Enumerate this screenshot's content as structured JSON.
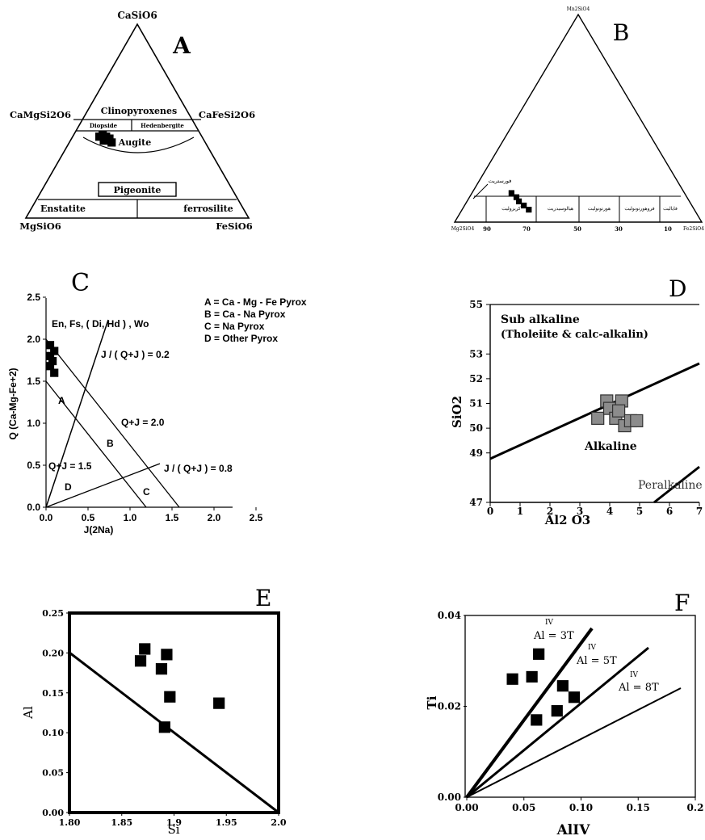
{
  "panels": {
    "A": {
      "letter": "A",
      "vertices": {
        "top": "CaSiO6",
        "left": "MgSiO6",
        "right": "FeSiO6"
      },
      "edge_labels": {
        "left": "CaMgSi2O6",
        "right": "CaFeSi2O6"
      },
      "fields": {
        "clinopyroxenes": "Clinopyroxenes",
        "diopside": "Diopside",
        "hedenbergite": "Hedenbergite",
        "augite": "Augite",
        "pigeonite": "Pigeonite",
        "enstatite": "Enstatite",
        "ferrosilite": "ferrosilite"
      }
    },
    "B": {
      "letter": "B",
      "vertices": {
        "top": "Mn2SiO4",
        "left": "Mg2SiO4",
        "right": "Fe2SiO4"
      },
      "ticks": [
        "90",
        "70",
        "50",
        "30",
        "10"
      ],
      "fields": [
        "فورستریت",
        "کریزولیت",
        "هیالوسیدریت",
        "هورتونولیت",
        "فروهورتونولیت",
        "فایالیت"
      ]
    },
    "C": {
      "letter": "C",
      "legend": [
        "A = Ca - Mg - Fe Pyrox",
        "B = Ca - Na Pyrox",
        "C = Na Pyrox",
        "D = Other Pyrox"
      ],
      "labels": {
        "top": "En, Fs, ( Di, Hd ) , Wo",
        "j02": "J / ( Q+J ) = 0.2",
        "j08": "J / ( Q+J ) = 0.8",
        "qj20": "Q+J = 2.0",
        "qj15": "Q+J = 1.5",
        "fa": "A",
        "fb": "B",
        "fc": "C",
        "fd": "D"
      }
    },
    "D": {
      "letter": "D",
      "labels": {
        "sub1": "Sub alkaline",
        "sub2": "(Tholeiite & calc-alkalin)",
        "alk": "Alkaline",
        "peral": "Peralkaline"
      }
    }
  },
  "chart_data": [
    {
      "panel": "A",
      "type": "ternary",
      "components": [
        "CaSiO6",
        "MgSiO6",
        "FeSiO6"
      ],
      "points": [
        {
          "Ca": 42,
          "Mg": 46,
          "Fe": 12
        },
        {
          "Ca": 43,
          "Mg": 44,
          "Fe": 13
        },
        {
          "Ca": 42,
          "Mg": 43,
          "Fe": 15
        },
        {
          "Ca": 41,
          "Mg": 44,
          "Fe": 15
        },
        {
          "Ca": 40,
          "Mg": 45,
          "Fe": 15
        },
        {
          "Ca": 41,
          "Mg": 42,
          "Fe": 17
        },
        {
          "Ca": 40,
          "Mg": 43,
          "Fe": 17
        },
        {
          "Ca": 39,
          "Mg": 42,
          "Fe": 19
        }
      ]
    },
    {
      "panel": "B",
      "type": "ternary",
      "components": [
        "Mn2SiO4",
        "Mg2SiO4",
        "Fe2SiO4"
      ],
      "points": [
        {
          "Mn": 14,
          "Mg": 70,
          "Fe": 16
        },
        {
          "Mn": 12,
          "Mg": 69,
          "Fe": 19
        },
        {
          "Mn": 10,
          "Mg": 69,
          "Fe": 21
        },
        {
          "Mn": 8,
          "Mg": 68,
          "Fe": 24
        },
        {
          "Mn": 6,
          "Mg": 67,
          "Fe": 27
        }
      ]
    },
    {
      "panel": "C",
      "type": "scatter",
      "xlabel": "J(2Na)",
      "ylabel": "Q (Ca-Mg-Fe+2)",
      "xlim": [
        0,
        2.5
      ],
      "ylim": [
        0,
        2.5
      ],
      "xticks": [
        "0.0",
        "0.5",
        "1.0",
        "1.5",
        "2.0",
        "2.5"
      ],
      "yticks": [
        "0.0",
        "0.5",
        "1.0",
        "1.5",
        "2.0",
        "2.5"
      ],
      "points": [
        {
          "x": 0.0,
          "y": 1.93
        },
        {
          "x": 0.05,
          "y": 1.86
        },
        {
          "x": 0.0,
          "y": 1.8
        },
        {
          "x": 0.03,
          "y": 1.74
        },
        {
          "x": 0.0,
          "y": 1.68
        },
        {
          "x": 0.05,
          "y": 1.6
        }
      ]
    },
    {
      "panel": "D",
      "type": "scatter",
      "xlabel": "Al2 O3",
      "ylabel": "SiO2",
      "xlim": [
        0,
        7
      ],
      "ylim": [
        47,
        55
      ],
      "xticks": [
        "0",
        "1",
        "2",
        "3",
        "4",
        "5",
        "6",
        "7"
      ],
      "yticks": [
        "47",
        "49",
        "50",
        "51",
        "52",
        "53",
        "55"
      ],
      "points": [
        {
          "x": 3.6,
          "y": 50.4
        },
        {
          "x": 3.9,
          "y": 51.1
        },
        {
          "x": 4.0,
          "y": 50.8
        },
        {
          "x": 4.2,
          "y": 50.4
        },
        {
          "x": 4.4,
          "y": 51.1
        },
        {
          "x": 4.3,
          "y": 50.7
        },
        {
          "x": 4.5,
          "y": 50.1
        },
        {
          "x": 4.7,
          "y": 50.3
        },
        {
          "x": 4.9,
          "y": 50.3
        }
      ]
    },
    {
      "panel": "E",
      "type": "scatter",
      "letter": "E",
      "xlabel": "Si",
      "ylabel": "Al",
      "xlim": [
        1.8,
        2.0
      ],
      "ylim": [
        0.0,
        0.25
      ],
      "xticks": [
        "1.80",
        "1.85",
        "1.9",
        "1.95",
        "2.0"
      ],
      "yticks": [
        "0.00",
        "0.05",
        "0.10",
        "0.15",
        "0.20",
        "0.25"
      ],
      "points": [
        {
          "x": 1.872,
          "y": 0.205
        },
        {
          "x": 1.868,
          "y": 0.19
        },
        {
          "x": 1.893,
          "y": 0.198
        },
        {
          "x": 1.888,
          "y": 0.18
        },
        {
          "x": 1.896,
          "y": 0.145
        },
        {
          "x": 1.891,
          "y": 0.107
        },
        {
          "x": 1.943,
          "y": 0.137
        }
      ]
    },
    {
      "panel": "F",
      "type": "scatter",
      "letter": "F",
      "xlabel": "AlIV",
      "ylabel": "Ti",
      "xlim": [
        0.0,
        0.2
      ],
      "ylim": [
        0.0,
        0.04
      ],
      "xticks": [
        "0.00",
        "0.05",
        "0.10",
        "0.15",
        "0.2"
      ],
      "yticks": [
        "0.00",
        "0.02",
        "0.04"
      ],
      "line_labels": [
        "Al = 3T",
        "Al = 5T",
        "Al = 8T"
      ],
      "points": [
        {
          "x": 0.04,
          "y": 0.026
        },
        {
          "x": 0.057,
          "y": 0.0265
        },
        {
          "x": 0.063,
          "y": 0.0315
        },
        {
          "x": 0.061,
          "y": 0.017
        },
        {
          "x": 0.079,
          "y": 0.019
        },
        {
          "x": 0.084,
          "y": 0.0245
        },
        {
          "x": 0.094,
          "y": 0.022
        }
      ]
    }
  ]
}
